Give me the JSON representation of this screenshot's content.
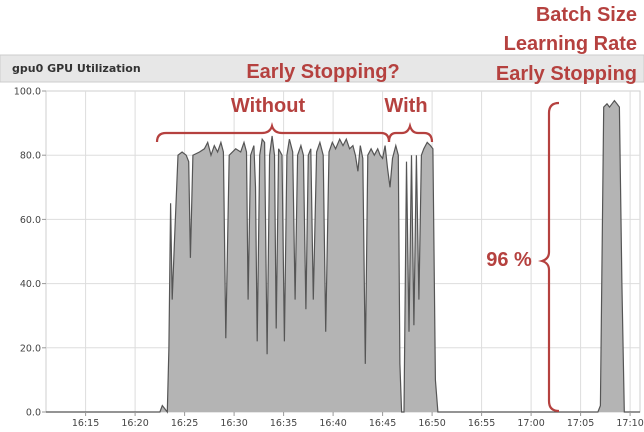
{
  "panel_title": "gpu0 GPU Utilization",
  "colors": {
    "annotation": "#b5413f",
    "fill": "#b4b4b4",
    "line": "#555555",
    "grid": "#dddddd"
  },
  "annotations": {
    "question": "Early Stopping?",
    "without": "Without",
    "with": "With",
    "percent": "96 %",
    "right_lines": [
      "Batch Size",
      "Learning Rate",
      "Early Stopping"
    ]
  },
  "chart_data": {
    "type": "area",
    "title": "gpu0 GPU Utilization",
    "xlabel": "",
    "ylabel": "",
    "x_unit": "time (HH:MM)",
    "xlim": [
      "16:11",
      "17:11"
    ],
    "ylim": [
      0,
      100
    ],
    "y_ticks": [
      0,
      20,
      40,
      60,
      80,
      100
    ],
    "y_tick_labels": [
      "0.0",
      "20.0",
      "40.0",
      "60.0",
      "80.0",
      "100.0"
    ],
    "x_ticks": [
      "16:15",
      "16:20",
      "16:25",
      "16:30",
      "16:35",
      "16:40",
      "16:45",
      "16:50",
      "16:55",
      "17:00",
      "17:05",
      "17:10"
    ],
    "grid": true,
    "legend": "none",
    "series": [
      {
        "points": [
          [
            "16:11:00",
            0
          ],
          [
            "16:22:30",
            0
          ],
          [
            "16:22:45",
            2
          ],
          [
            "16:23:00",
            1
          ],
          [
            "16:23:15",
            0
          ],
          [
            "16:23:25",
            20
          ],
          [
            "16:23:35",
            65
          ],
          [
            "16:23:45",
            35
          ],
          [
            "16:24:00",
            55
          ],
          [
            "16:24:20",
            80
          ],
          [
            "16:24:45",
            81
          ],
          [
            "16:25:10",
            80
          ],
          [
            "16:25:25",
            78
          ],
          [
            "16:25:35",
            48
          ],
          [
            "16:25:50",
            80
          ],
          [
            "16:26:30",
            81
          ],
          [
            "16:27:00",
            82
          ],
          [
            "16:27:20",
            84
          ],
          [
            "16:27:40",
            80
          ],
          [
            "16:28:00",
            83
          ],
          [
            "16:28:20",
            81
          ],
          [
            "16:28:40",
            84
          ],
          [
            "16:28:55",
            81
          ],
          [
            "16:29:10",
            23
          ],
          [
            "16:29:30",
            80
          ],
          [
            "16:30:10",
            82
          ],
          [
            "16:30:40",
            81
          ],
          [
            "16:31:00",
            84
          ],
          [
            "16:31:15",
            81
          ],
          [
            "16:31:25",
            35
          ],
          [
            "16:31:40",
            80
          ],
          [
            "16:32:00",
            83
          ],
          [
            "16:32:10",
            70
          ],
          [
            "16:32:20",
            22
          ],
          [
            "16:32:35",
            80
          ],
          [
            "16:32:50",
            85
          ],
          [
            "16:33:05",
            84
          ],
          [
            "16:33:20",
            18
          ],
          [
            "16:33:35",
            80
          ],
          [
            "16:33:50",
            86
          ],
          [
            "16:34:05",
            80
          ],
          [
            "16:34:15",
            26
          ],
          [
            "16:34:30",
            82
          ],
          [
            "16:34:50",
            80
          ],
          [
            "16:35:05",
            22
          ],
          [
            "16:35:20",
            80
          ],
          [
            "16:35:35",
            85
          ],
          [
            "16:35:55",
            81
          ],
          [
            "16:36:10",
            35
          ],
          [
            "16:36:25",
            80
          ],
          [
            "16:36:45",
            83
          ],
          [
            "16:37:00",
            80
          ],
          [
            "16:37:15",
            32
          ],
          [
            "16:37:30",
            80
          ],
          [
            "16:37:45",
            82
          ],
          [
            "16:38:00",
            35
          ],
          [
            "16:38:20",
            81
          ],
          [
            "16:38:40",
            84
          ],
          [
            "16:39:00",
            80
          ],
          [
            "16:39:15",
            25
          ],
          [
            "16:39:35",
            81
          ],
          [
            "16:39:55",
            84
          ],
          [
            "16:40:15",
            82
          ],
          [
            "16:40:40",
            85
          ],
          [
            "16:41:00",
            83
          ],
          [
            "16:41:20",
            85
          ],
          [
            "16:41:40",
            82
          ],
          [
            "16:42:00",
            83
          ],
          [
            "16:42:15",
            80
          ],
          [
            "16:42:30",
            75
          ],
          [
            "16:42:45",
            83
          ],
          [
            "16:43:00",
            79
          ],
          [
            "16:43:15",
            15
          ],
          [
            "16:43:30",
            80
          ],
          [
            "16:43:50",
            82
          ],
          [
            "16:44:10",
            80
          ],
          [
            "16:44:30",
            82
          ],
          [
            "16:44:45",
            80
          ],
          [
            "16:45:00",
            79
          ],
          [
            "16:45:15",
            83
          ],
          [
            "16:45:30",
            76
          ],
          [
            "16:45:45",
            70
          ],
          [
            "16:46:00",
            79
          ],
          [
            "16:46:20",
            83
          ],
          [
            "16:46:35",
            80
          ],
          [
            "16:46:45",
            15
          ],
          [
            "16:46:55",
            0
          ],
          [
            "16:47:10",
            0
          ],
          [
            "16:47:25",
            78
          ],
          [
            "16:47:40",
            25
          ],
          [
            "16:47:55",
            80
          ],
          [
            "16:48:10",
            27
          ],
          [
            "16:48:25",
            80
          ],
          [
            "16:48:40",
            35
          ],
          [
            "16:48:55",
            80
          ],
          [
            "16:49:10",
            82
          ],
          [
            "16:49:30",
            84
          ],
          [
            "16:49:50",
            83
          ],
          [
            "16:50:05",
            82
          ],
          [
            "16:50:20",
            10
          ],
          [
            "16:50:35",
            0
          ],
          [
            "17:06:45",
            0
          ],
          [
            "17:07:00",
            2
          ],
          [
            "17:07:20",
            95
          ],
          [
            "17:07:40",
            96
          ],
          [
            "17:07:55",
            95
          ],
          [
            "17:08:10",
            96
          ],
          [
            "17:08:25",
            97
          ],
          [
            "17:08:40",
            96
          ],
          [
            "17:08:55",
            95
          ],
          [
            "17:09:10",
            40
          ],
          [
            "17:09:25",
            0
          ],
          [
            "17:11:00",
            0
          ]
        ]
      }
    ]
  }
}
